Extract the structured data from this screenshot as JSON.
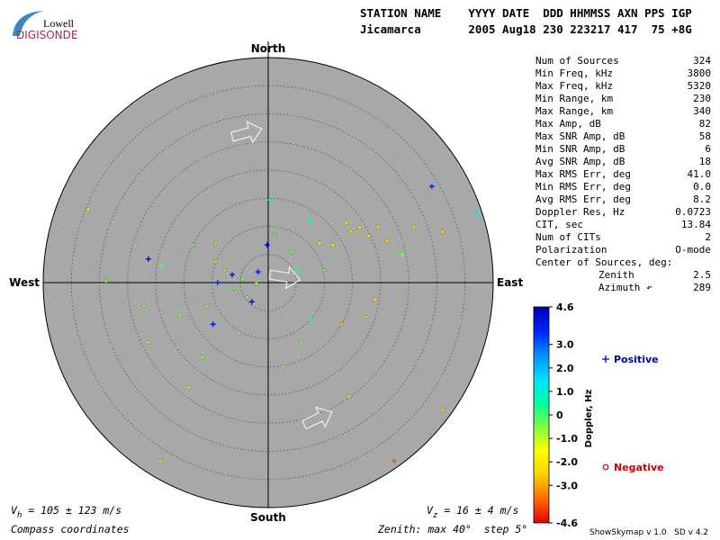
{
  "logo": {
    "top": "Lowell",
    "bottom": "DIGISONDE"
  },
  "header": {
    "labels": "STATION NAME    YYYY DATE  DDD HHMMSS AXN PPS IGP",
    "values": "Jicamarca       2005 Aug18 230 223217 417  75 +8G"
  },
  "chart_data": {
    "type": "skymap",
    "directions": {
      "north": "North",
      "south": "South",
      "east": "East",
      "west": "West"
    },
    "xlim": [
      -40,
      40
    ],
    "ylim": [
      -40,
      40
    ],
    "rticks": [
      5,
      10,
      15,
      20,
      25,
      30,
      35
    ],
    "rlim": 40,
    "grid": true,
    "series": [
      {
        "name": "Positive",
        "marker": "plus",
        "color": "#0000c0",
        "x": [
          29.1,
          -21.3,
          -0.2,
          -1.8,
          -6.4,
          -9.8,
          -2.9,
          -9.0,
          37.1,
          7.5,
          5.1,
          0.3,
          23.8,
          -18.9,
          7.5
        ],
        "y": [
          17.1,
          4.2,
          6.7,
          1.9,
          1.4,
          -7.4,
          -3.4,
          0.0,
          12.3,
          11.0,
          2.2,
          14.7,
          5.0,
          2.9,
          -6.6
        ],
        "doppler": [
          3.5,
          4.0,
          4.2,
          4.0,
          3.8,
          4.0,
          4.2,
          3.5,
          1.0,
          0.5,
          0.3,
          0.5,
          -0.3,
          0.0,
          0.5
        ]
      },
      {
        "name": "Negative",
        "marker": "circle",
        "color": "#cc0000",
        "x": [
          -32.0,
          16.3,
          14.7,
          17.9,
          13.9,
          9.1,
          19.5,
          25.9,
          31.0,
          21.1,
          11.5,
          19.0,
          17.3,
          13.1,
          31.0,
          22.4,
          -4.5,
          -6.1,
          -2.1,
          -3.7,
          -7.7,
          -9.3,
          -13.3,
          -10.9,
          -15.7,
          -11.7,
          -14.1,
          -19.2,
          2.7,
          5.9,
          14.4,
          9.9,
          4.3,
          -22.1,
          -21.3,
          -28.8,
          1.1,
          -9.3
        ],
        "y": [
          13.0,
          9.8,
          9.0,
          8.3,
          10.6,
          7.0,
          9.9,
          9.9,
          9.0,
          7.4,
          6.7,
          -3.0,
          -6.1,
          -7.4,
          -22.6,
          -31.7,
          0.6,
          -1.0,
          -0.2,
          -2.6,
          2.2,
          3.8,
          6.7,
          -4.2,
          -5.8,
          -13.3,
          -18.6,
          -31.8,
          -14.9,
          -10.6,
          -20.2,
          2.2,
          5.4,
          -4.2,
          -10.6,
          0.3,
          8.6,
          7.0
        ],
        "doppler": [
          -1.2,
          -2.0,
          -2.2,
          -2.2,
          -2.1,
          -2.0,
          -2.2,
          -2.1,
          -2.2,
          -2.2,
          -2.0,
          -2.3,
          -2.5,
          -2.7,
          -2.5,
          -3.5,
          -0.5,
          -0.4,
          -0.5,
          -0.3,
          -0.5,
          -0.6,
          -0.4,
          -0.5,
          -0.6,
          -0.7,
          -0.8,
          -1.0,
          -0.5,
          -0.6,
          -0.9,
          -0.4,
          -0.3,
          -0.6,
          -0.8,
          -0.5,
          -0.2,
          -0.5
        ]
      }
    ],
    "colorbar": {
      "label": "Doppler, Hz",
      "zlim": [
        -4.6,
        4.6
      ],
      "colormap": [
        "#e00000",
        "#ff6a00",
        "#ffd000",
        "#ffff00",
        "#80ff40",
        "#00ffa0",
        "#00e0ff",
        "#0090ff",
        "#0020ff",
        "#0000b0"
      ],
      "ticks": [
        4.6,
        {
          "value": 3,
          "label": "3.0"
        },
        {
          "value": 2,
          "label": "2.0"
        },
        {
          "value": 1,
          "label": "1.0"
        },
        0,
        {
          "value": -1,
          "label": "-1.0"
        },
        {
          "value": -2,
          "label": "-2.0"
        },
        {
          "value": -3,
          "label": "-3.0"
        },
        -4.6
      ]
    }
  },
  "stats": [
    [
      "Num of Sources",
      "324"
    ],
    [
      "Min Freq, kHz",
      "3800"
    ],
    [
      "Max Freq, kHz",
      "5320"
    ],
    [
      "Min Range, km",
      "230"
    ],
    [
      "Max Range, km",
      "340"
    ],
    [
      "Max Amp, dB",
      "82"
    ],
    [
      "Max SNR Amp, dB",
      "58"
    ],
    [
      "Min SNR Amp, dB",
      "6"
    ],
    [
      "Avg SNR Amp, dB",
      "18"
    ],
    [
      "Max RMS Err, deg",
      "41.0"
    ],
    [
      "Min RMS Err, deg",
      "0.0"
    ],
    [
      "Avg RMS Err, deg",
      "8.2"
    ],
    [
      "Doppler Res, Hz",
      "0.0723"
    ],
    [
      "CIT, sec",
      "13.84"
    ],
    [
      "Num of CITs",
      "2"
    ],
    [
      "Polarization",
      "O-mode"
    ]
  ],
  "center": {
    "title": "Center of Sources, deg:",
    "rows": [
      [
        "Zenith",
        "2.5"
      ],
      [
        "Azimuth ↶",
        "289"
      ]
    ]
  },
  "footer": {
    "vh": {
      "symbol": "V",
      "sub": "h",
      "text": " = 105 ± 123 m/s"
    },
    "vz": {
      "symbol": "V",
      "sub": "z",
      "text": " = 16 ± 4 m/s"
    },
    "coords": "Compass coordinates",
    "zenith": "Zenith: max 40°  step 5°",
    "version": "ShowSkymap v 1.0   SD v 4.2"
  }
}
